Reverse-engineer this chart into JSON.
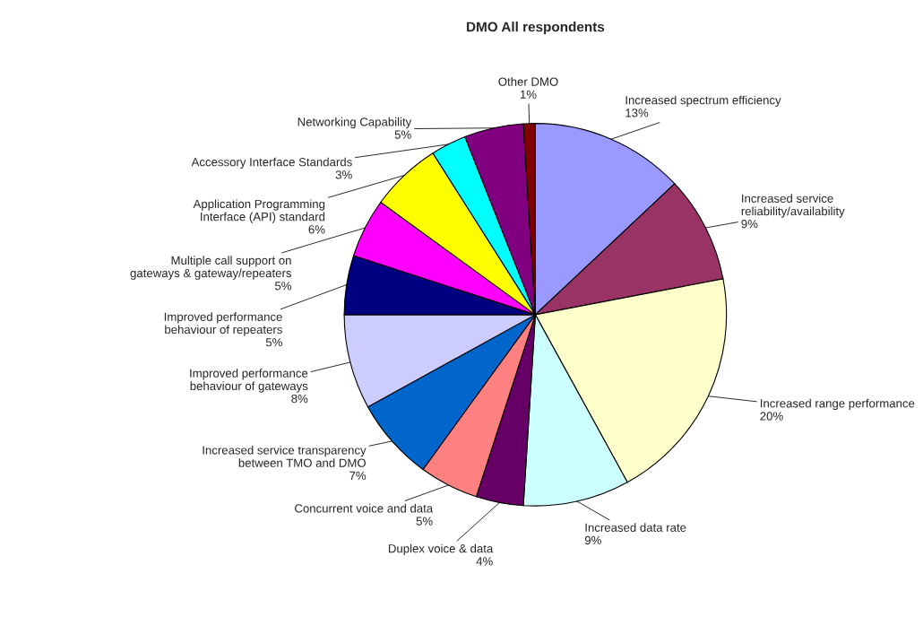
{
  "chart_data": {
    "type": "pie",
    "title": "DMO All respondents",
    "categories": [
      "Increased spectrum efficiency",
      "Increased service\nreliability/availability",
      "Increased range performance",
      "Increased data rate",
      "Duplex voice & data",
      "Concurrent voice and data",
      "Increased service transparency\nbetween TMO and DMO",
      "Improved performance\nbehaviour of gateways",
      "Improved performance\nbehaviour of repeaters",
      "Multiple call support on\ngateways & gateway/repeaters",
      "Application Programming\nInterface (API) standard",
      "Accessory Interface Standards",
      "Networking Capability",
      "Other DMO"
    ],
    "values": [
      13,
      9,
      20,
      9,
      4,
      5,
      7,
      8,
      5,
      5,
      6,
      3,
      5,
      1
    ],
    "colors": [
      "#9999ff",
      "#993366",
      "#ffffcc",
      "#ccffff",
      "#660066",
      "#ff8080",
      "#0066cc",
      "#ccccff",
      "#000080",
      "#ff00ff",
      "#ffff00",
      "#00ffff",
      "#800080",
      "#800000"
    ],
    "value_labels": [
      "13%",
      "9%",
      "20%",
      "9%",
      "4%",
      "5%",
      "7%",
      "8%",
      "5%",
      "5%",
      "6%",
      "3%",
      "5%",
      "1%"
    ]
  }
}
